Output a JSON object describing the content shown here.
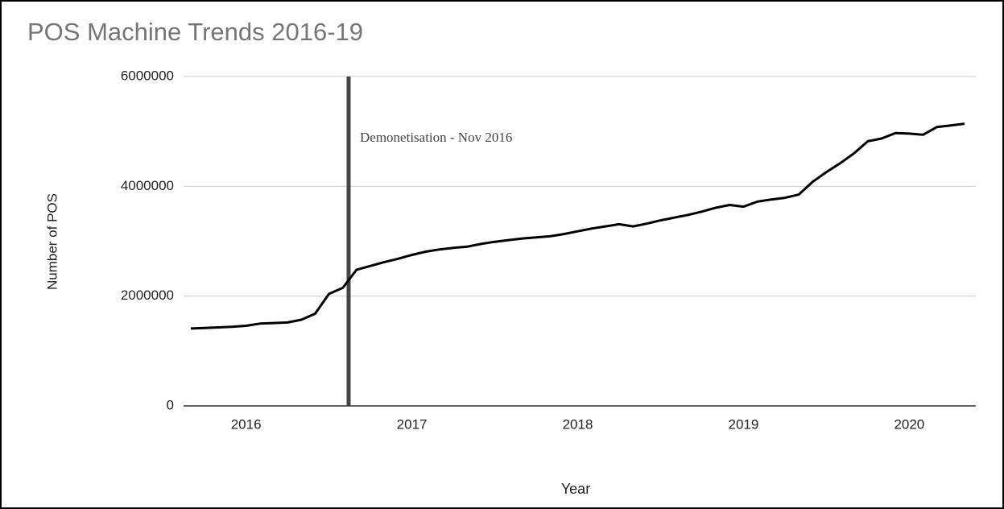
{
  "chart_data": {
    "type": "line",
    "title": "POS Machine Trends 2016-19",
    "x_label": "Year",
    "y_label": "Number of POS",
    "categories": [
      null,
      null,
      null,
      null,
      "2016",
      null,
      null,
      null,
      null,
      null,
      null,
      null,
      null,
      null,
      null,
      null,
      "2017",
      null,
      null,
      null,
      null,
      null,
      null,
      null,
      null,
      null,
      null,
      null,
      "2018",
      null,
      null,
      null,
      null,
      null,
      null,
      null,
      null,
      null,
      null,
      null,
      "2019",
      null,
      null,
      null,
      null,
      null,
      null,
      null,
      null,
      null,
      null,
      null,
      "2020",
      null,
      null,
      null,
      null
    ],
    "series": [
      {
        "name": "Number of POS",
        "color": "#000000",
        "values": [
          1410000,
          1420000,
          1430000,
          1440000,
          1460000,
          1500000,
          1510000,
          1520000,
          1570000,
          1680000,
          2040000,
          2150000,
          2480000,
          2550000,
          2620000,
          2680000,
          2750000,
          2810000,
          2850000,
          2880000,
          2900000,
          2950000,
          2990000,
          3020000,
          3050000,
          3070000,
          3090000,
          3130000,
          3180000,
          3230000,
          3270000,
          3310000,
          3270000,
          3320000,
          3380000,
          3430000,
          3480000,
          3540000,
          3610000,
          3660000,
          3630000,
          3720000,
          3760000,
          3790000,
          3850000,
          4080000,
          4260000,
          4420000,
          4600000,
          4820000,
          4870000,
          4970000,
          4960000,
          4940000,
          5080000,
          5110000,
          5140000
        ]
      }
    ],
    "ylim": [
      0,
      6000000
    ],
    "yticks": [
      0,
      2000000,
      4000000,
      6000000
    ],
    "grid": true,
    "annotation": "Demonetisation - Nov 2016"
  }
}
